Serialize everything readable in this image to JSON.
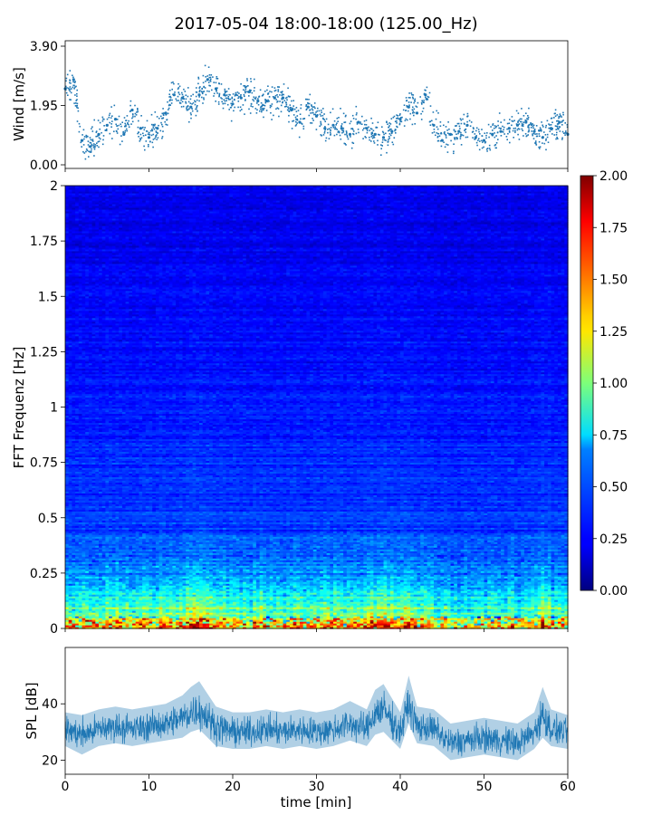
{
  "title": "2017-05-04 18:00-18:00 (125.00_Hz)",
  "chart_data": [
    {
      "id": "wind",
      "type": "scatter",
      "ylabel": "Wind [m/s]",
      "xlim": [
        0,
        60
      ],
      "ylim": [
        0,
        3.9
      ],
      "yticks": [
        "0.00",
        "1.95",
        "3.90"
      ],
      "ytick_values": [
        0,
        1.95,
        3.9
      ],
      "color": "#1f77b4",
      "x": [
        0,
        1,
        2,
        3,
        4,
        5,
        6,
        7,
        8,
        9,
        10,
        11,
        12,
        13,
        14,
        15,
        16,
        17,
        18,
        19,
        20,
        21,
        22,
        23,
        24,
        25,
        26,
        27,
        28,
        29,
        30,
        31,
        32,
        33,
        34,
        35,
        36,
        37,
        38,
        39,
        40,
        41,
        42,
        43,
        44,
        45,
        46,
        47,
        48,
        49,
        50,
        51,
        52,
        53,
        54,
        55,
        56,
        57,
        58,
        59,
        60
      ],
      "y": [
        2.5,
        2.8,
        0.8,
        0.6,
        1.0,
        1.3,
        1.5,
        1.0,
        1.8,
        1.2,
        0.9,
        1.2,
        1.7,
        2.3,
        2.2,
        1.9,
        2.3,
        2.8,
        2.5,
        2.3,
        2.0,
        2.2,
        2.4,
        2.1,
        2.1,
        2.2,
        2.2,
        1.8,
        1.4,
        1.9,
        1.6,
        1.2,
        1.3,
        1.2,
        1.0,
        1.4,
        1.2,
        1.0,
        0.9,
        1.1,
        1.5,
        1.9,
        1.7,
        2.3,
        1.3,
        0.8,
        1.0,
        1.1,
        1.3,
        0.9,
        0.8,
        1.0,
        1.1,
        1.2,
        1.3,
        1.4,
        1.1,
        0.9,
        1.2,
        1.4,
        1.0
      ]
    },
    {
      "id": "spectrogram",
      "type": "heatmap",
      "ylabel": "FFT Frequenz [Hz]",
      "xlim": [
        0,
        60
      ],
      "ylim": [
        0,
        2
      ],
      "yticks": [
        "0",
        "0.25",
        "0.5",
        "0.75",
        "1",
        "1.25",
        "1.5",
        "1.75",
        "2"
      ],
      "ytick_values": [
        0,
        0.25,
        0.5,
        0.75,
        1,
        1.25,
        1.5,
        1.75,
        2
      ],
      "colormap": "jet",
      "colorbar": {
        "range": [
          0,
          2
        ],
        "ticks": [
          "0.00",
          "0.25",
          "0.50",
          "0.75",
          "1.00",
          "1.25",
          "1.50",
          "1.75",
          "2.00"
        ],
        "tick_values": [
          0,
          0.25,
          0.5,
          0.75,
          1,
          1.25,
          1.5,
          1.75,
          2
        ]
      },
      "typical_levels": [
        {
          "freq_hz": 0.02,
          "value": 1.4
        },
        {
          "freq_hz": 0.06,
          "value": 1.0
        },
        {
          "freq_hz": 0.25,
          "value": 0.5
        },
        {
          "freq_hz": 0.5,
          "value": 0.35
        },
        {
          "freq_hz": 1.0,
          "value": 0.3
        },
        {
          "freq_hz": 1.5,
          "value": 0.25
        },
        {
          "freq_hz": 2.0,
          "value": 0.2
        }
      ]
    },
    {
      "id": "spl",
      "type": "area",
      "ylabel": "SPL [dB]",
      "xlabel": "time [min]",
      "xlim": [
        0,
        60
      ],
      "ylim": [
        15,
        60
      ],
      "yticks": [
        "20",
        "40"
      ],
      "ytick_values": [
        20,
        40
      ],
      "xticks": [
        "0",
        "10",
        "20",
        "30",
        "40",
        "50",
        "60"
      ],
      "xtick_values": [
        0,
        10,
        20,
        30,
        40,
        50,
        60
      ],
      "color": "#1f77b4",
      "x": [
        0,
        2,
        4,
        6,
        8,
        10,
        12,
        14,
        15,
        16,
        18,
        20,
        22,
        24,
        26,
        28,
        30,
        32,
        34,
        36,
        37,
        38,
        40,
        41,
        42,
        44,
        46,
        48,
        50,
        52,
        54,
        56,
        57,
        58,
        60
      ],
      "y": [
        31,
        29,
        31,
        32,
        31,
        32,
        33,
        35,
        37,
        38,
        32,
        30,
        30,
        31,
        30,
        31,
        30,
        31,
        33,
        31,
        37,
        38,
        30,
        40,
        32,
        31,
        26,
        27,
        28,
        27,
        26,
        30,
        36,
        31,
        30
      ],
      "low": [
        25,
        22,
        25,
        26,
        25,
        26,
        27,
        28,
        30,
        31,
        25,
        24,
        24,
        25,
        24,
        25,
        24,
        25,
        27,
        25,
        29,
        30,
        24,
        33,
        26,
        25,
        20,
        21,
        22,
        21,
        20,
        24,
        28,
        25,
        24
      ],
      "high": [
        37,
        36,
        38,
        39,
        38,
        39,
        40,
        43,
        46,
        48,
        39,
        37,
        37,
        38,
        37,
        38,
        37,
        38,
        41,
        38,
        45,
        47,
        37,
        50,
        39,
        38,
        33,
        34,
        35,
        34,
        33,
        37,
        46,
        38,
        36
      ]
    }
  ]
}
